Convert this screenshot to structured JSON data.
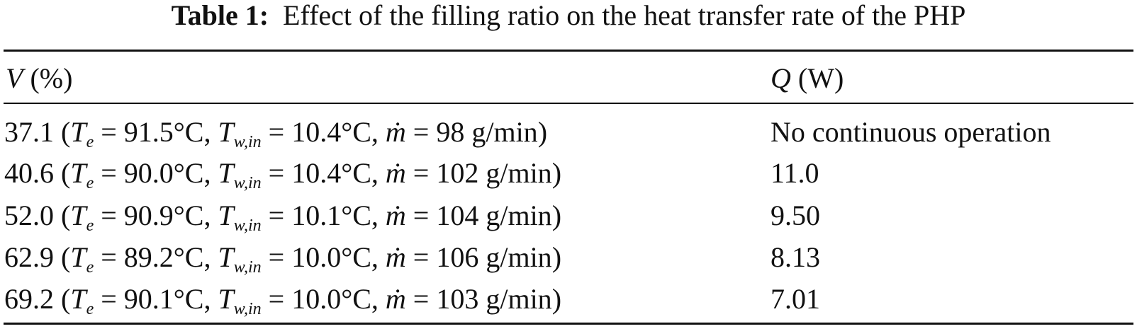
{
  "table": {
    "label": "Table 1:",
    "caption": "Effect of the filling ratio on the heat transfer rate of the PHP",
    "header": {
      "v_symbol": "V",
      "v_unit": "(%)",
      "q_symbol": "Q",
      "q_unit": "(W)"
    },
    "notation": {
      "T": "T",
      "e": "e",
      "w_in": "w,in",
      "m_dot": "ṁ",
      "eq": "=",
      "open": "(",
      "comma": ",",
      "close": ")"
    },
    "rows": [
      {
        "V": "37.1",
        "Te": "91.5°C",
        "Tw_in": "10.4°C",
        "m_dot": "98 g/min",
        "Q": "No continuous operation"
      },
      {
        "V": "40.6",
        "Te": "90.0°C",
        "Tw_in": "10.4°C",
        "m_dot": "102 g/min",
        "Q": "11.0"
      },
      {
        "V": "52.0",
        "Te": "90.9°C",
        "Tw_in": "10.1°C",
        "m_dot": "104 g/min",
        "Q": "9.50"
      },
      {
        "V": "62.9",
        "Te": "89.2°C",
        "Tw_in": "10.0°C",
        "m_dot": "106 g/min",
        "Q": "8.13"
      },
      {
        "V": "69.2",
        "Te": "90.1°C",
        "Tw_in": "10.0°C",
        "m_dot": "103 g/min",
        "Q": "7.01"
      }
    ]
  }
}
